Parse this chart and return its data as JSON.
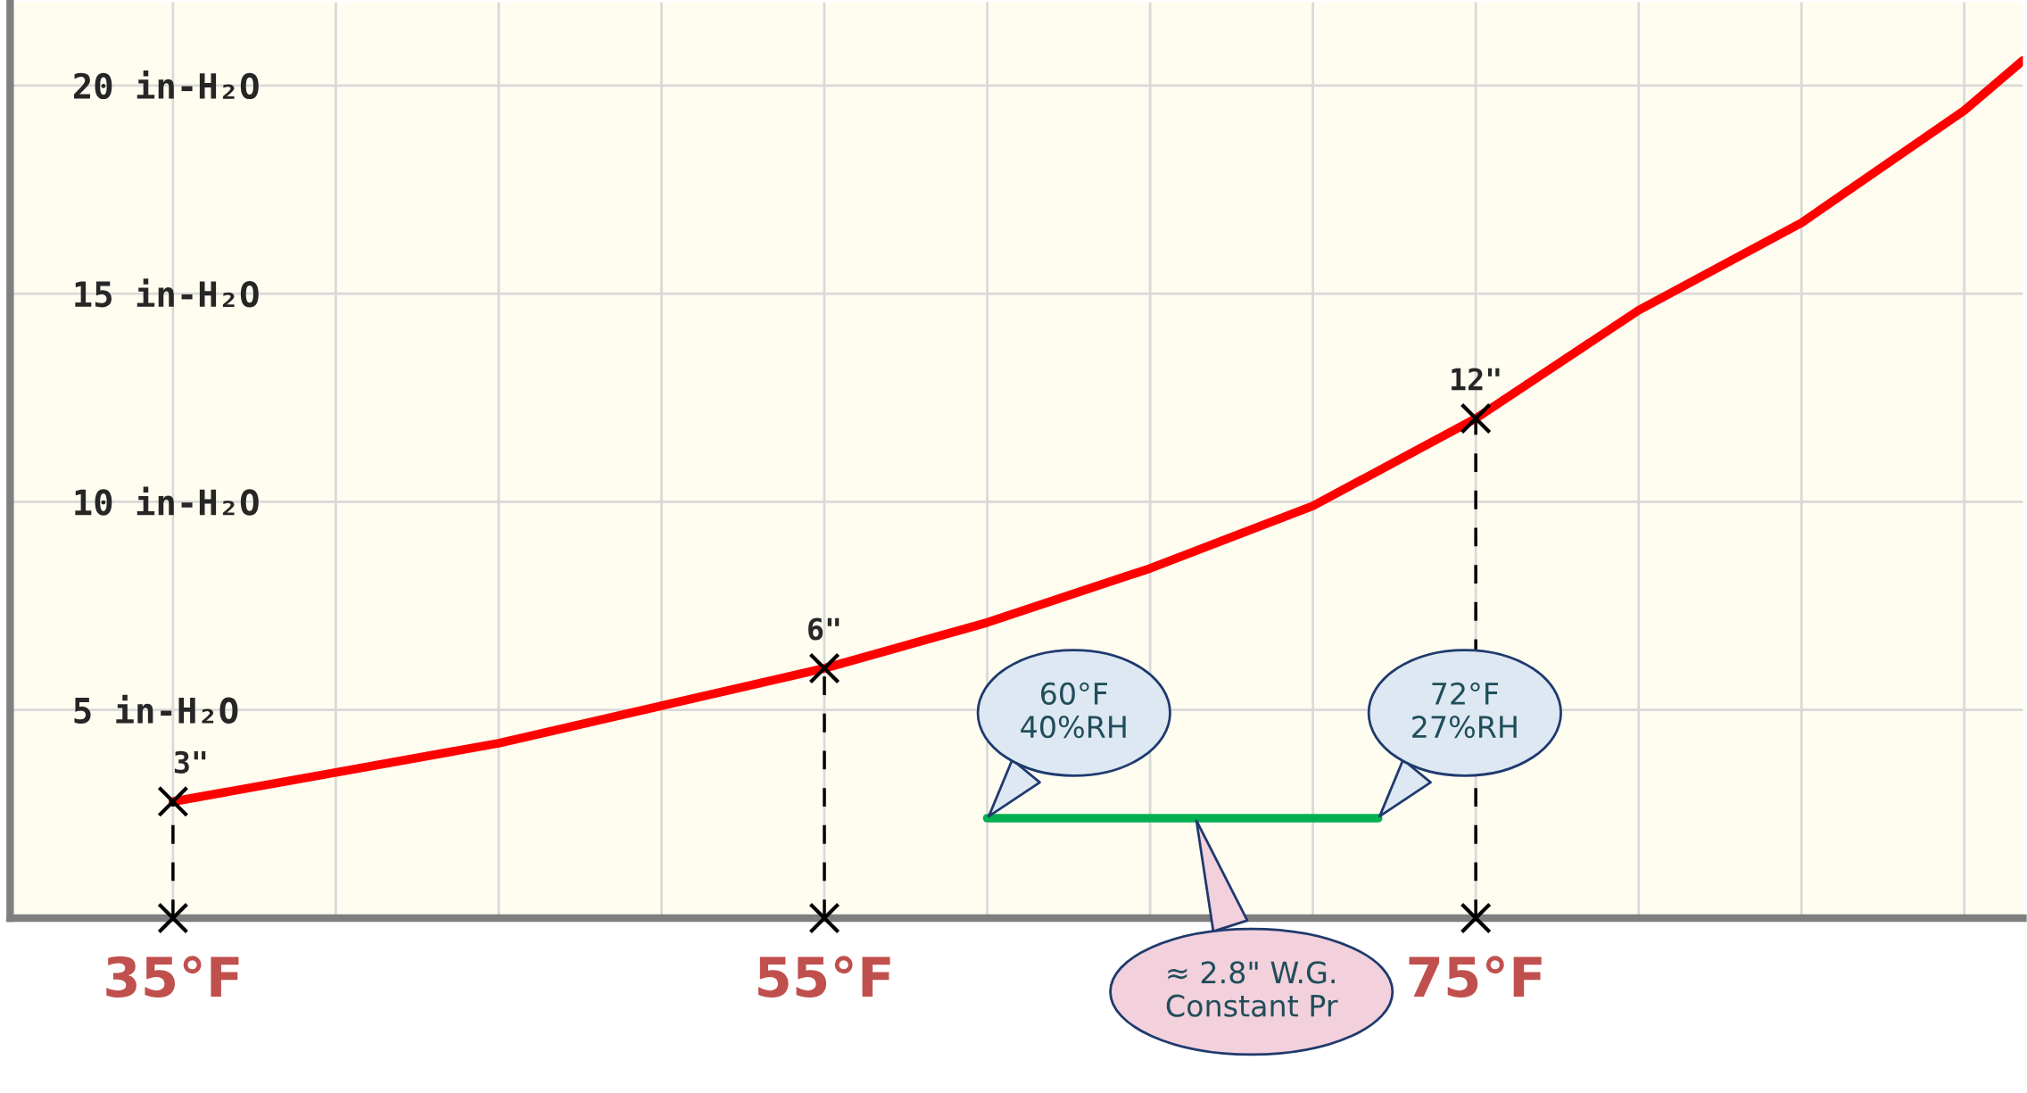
{
  "chart_data": {
    "type": "line",
    "xlim": [
      30,
      91.8
    ],
    "ylim": [
      0,
      22
    ],
    "xticks": [
      {
        "value": 35,
        "label": "35°F"
      },
      {
        "value": 40,
        "label": null
      },
      {
        "value": 45,
        "label": null
      },
      {
        "value": 50,
        "label": null
      },
      {
        "value": 55,
        "label": "55°F"
      },
      {
        "value": 60,
        "label": null
      },
      {
        "value": 65,
        "label": null
      },
      {
        "value": 70,
        "label": null
      },
      {
        "value": 75,
        "label": "75°F"
      },
      {
        "value": 80,
        "label": null
      },
      {
        "value": 85,
        "label": null
      },
      {
        "value": 90,
        "label": null
      }
    ],
    "yticks": [
      {
        "value": 5,
        "label": "5 in-H₂O"
      },
      {
        "value": 10,
        "label": "10 in-H₂O"
      },
      {
        "value": 15,
        "label": "15 in-H₂O"
      },
      {
        "value": 20,
        "label": "20 in-H₂O"
      }
    ],
    "grid": true,
    "series": [
      {
        "color": "#ff0000",
        "x": [
          35,
          40,
          45,
          50,
          55,
          60,
          65,
          70,
          75,
          80,
          85,
          90,
          91.8
        ],
        "values": [
          2.8,
          3.5,
          4.2,
          5.1,
          6.0,
          7.1,
          8.4,
          9.9,
          12.0,
          14.6,
          16.7,
          19.4,
          20.6
        ]
      },
      {
        "type": "lollipop",
        "color": "#000000",
        "marker": "cross",
        "line_style": "dashed",
        "x": [
          35,
          55,
          75
        ],
        "values": [
          2.8,
          6.0,
          12.0
        ],
        "value_labels": [
          "3\"",
          "6\"",
          "12\""
        ]
      },
      {
        "type": "scatter",
        "color": "#000000",
        "marker": "cross",
        "x": [
          35,
          55,
          75
        ],
        "values": [
          0,
          0,
          0
        ]
      },
      {
        "color": "#00b050",
        "x": [
          60,
          72
        ],
        "values": [
          2.4,
          2.4
        ]
      }
    ],
    "annotations": [
      {
        "text": "60°F\n40%RH",
        "x": 60,
        "y": 2.4
      },
      {
        "text": "72°F\n27%RH",
        "x": 72,
        "y": 2.4
      },
      {
        "text": "≈ 2.8\" W.G.\nConstant Pr",
        "x": 66.4,
        "y": 2.4
      }
    ]
  }
}
